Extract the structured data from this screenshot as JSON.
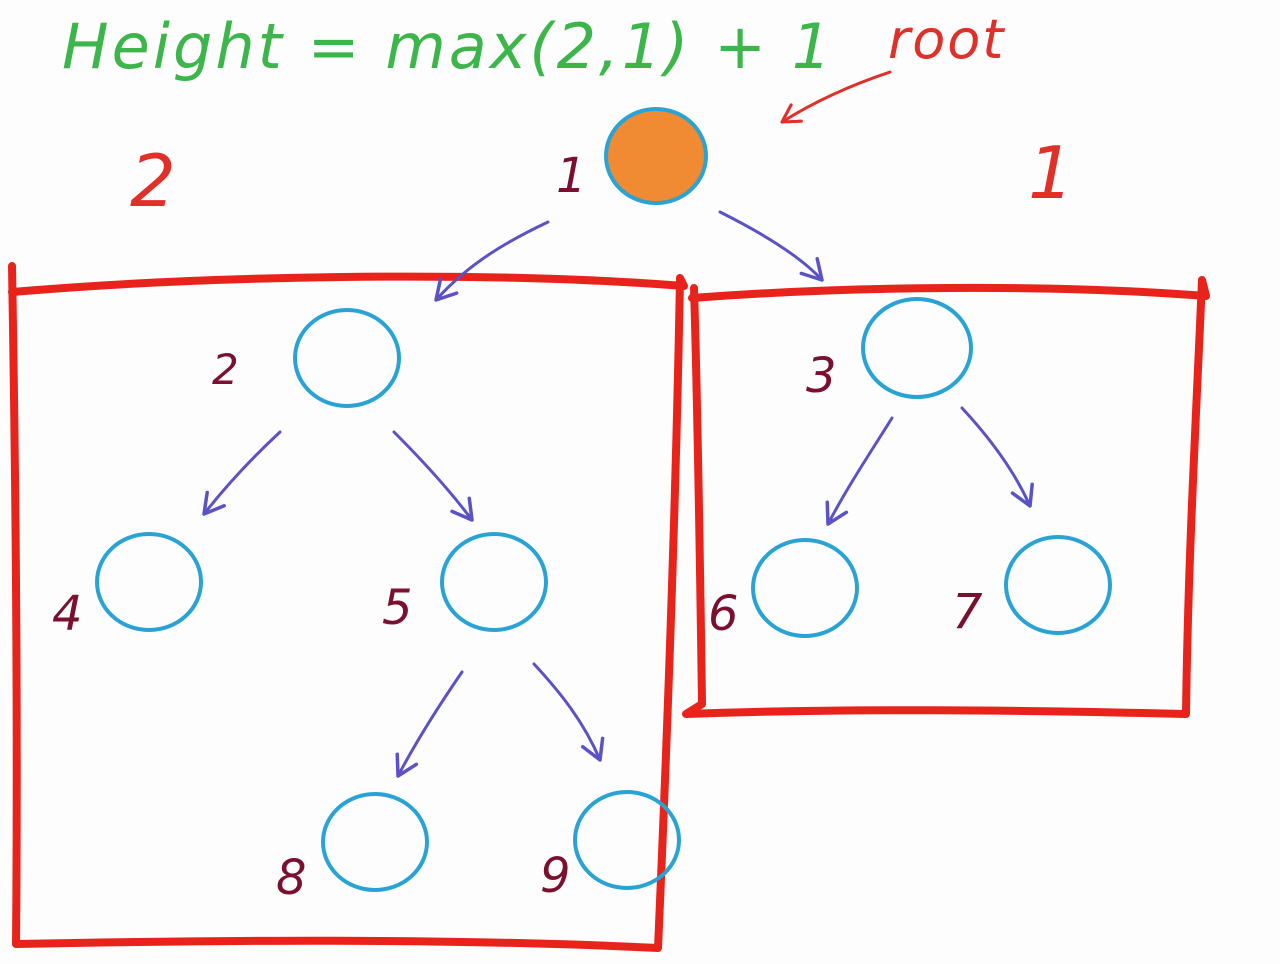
{
  "title": "Height = max(2,1) + 1",
  "root_annotation": "root",
  "subtree_heights": {
    "left": "2",
    "right": "1"
  },
  "nodes": {
    "n1": "1",
    "n2": "2",
    "n3": "3",
    "n4": "4",
    "n5": "5",
    "n6": "6",
    "n7": "7",
    "n8": "8",
    "n9": "9"
  },
  "colors": {
    "title": "#3cb54a",
    "annotation": "#e0302a",
    "box": "#e8231b",
    "node_outline": "#29a3d4",
    "root_fill": "#f08b33",
    "edge": "#5b52c4",
    "label": "#7a1030"
  }
}
